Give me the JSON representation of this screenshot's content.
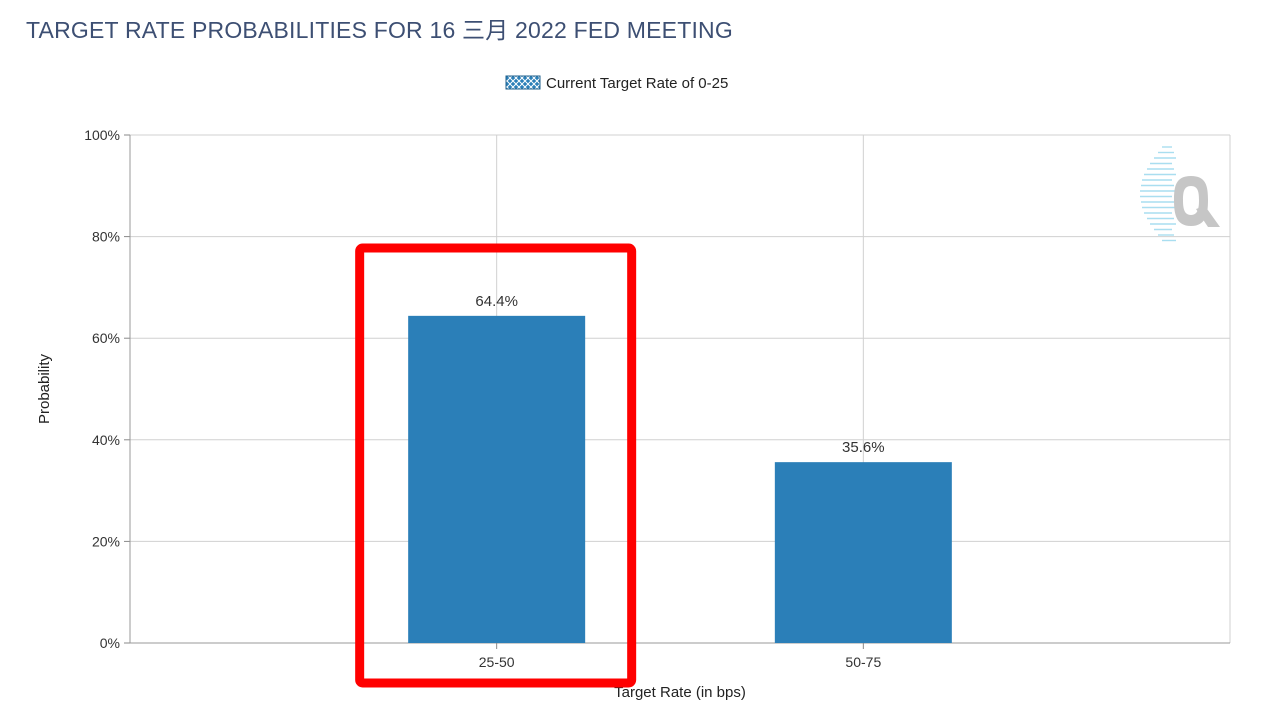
{
  "header": {
    "title": "TARGET RATE PROBABILITIES FOR 16 三月 2022 FED MEETING"
  },
  "chart_data": {
    "type": "bar",
    "title": "TARGET RATE PROBABILITIES FOR 16 三月 2022 FED MEETING",
    "categories": [
      "25-50",
      "50-75"
    ],
    "series": [
      {
        "name": "Current Target Rate of 0-25",
        "values": [
          64.4,
          35.6
        ],
        "labels": [
          "64.4%",
          "35.6%"
        ]
      }
    ],
    "xlabel": "Target Rate (in bps)",
    "ylabel": "Probability",
    "ylim": [
      0,
      100
    ],
    "yticks": [
      0,
      20,
      40,
      60,
      80,
      100
    ],
    "ytick_labels": [
      "0%",
      "20%",
      "40%",
      "60%",
      "80%",
      "100%"
    ],
    "grid": true,
    "legend_position": "top-center",
    "bar_color": "#2b7fb8",
    "grid_color": "#d0d0d0",
    "highlight_category": "25-50",
    "highlight_color": "#ff0000",
    "watermark_icon": "q-logo-icon"
  }
}
